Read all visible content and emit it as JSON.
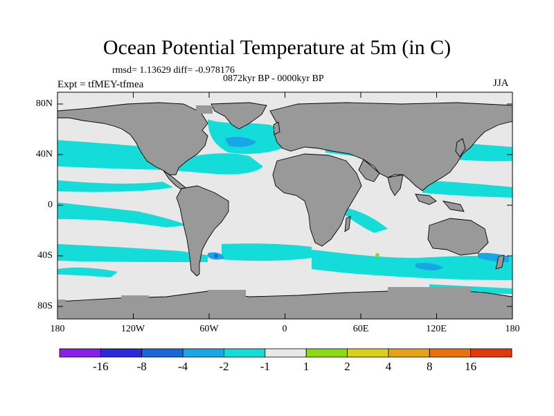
{
  "title": "Ocean Potential Temperature at 5m (in C)",
  "stats": "rmsd= 1.13629 diff= -0.978176",
  "period": "0872kyr BP - 0000kyr BP",
  "experiment": "Expt = tfMEY-tfmea",
  "season": "JJA",
  "lat_labels": [
    "80N",
    "40N",
    "0",
    "40S",
    "80S"
  ],
  "lon_labels": [
    "180",
    "120W",
    "60W",
    "0",
    "60E",
    "120E",
    "180"
  ],
  "colorbar": {
    "labels": [
      "-16",
      "-8",
      "-4",
      "-2",
      "-1",
      "1",
      "2",
      "4",
      "8",
      "16"
    ],
    "colors": [
      "#8a1ee8",
      "#2c2ad8",
      "#1768d8",
      "#19a6e6",
      "#14dcd8",
      "#e8e8e8",
      "#8ada18",
      "#d8d01a",
      "#e8a21a",
      "#e8700e",
      "#e03a0c"
    ]
  },
  "colors": {
    "land": "#999999",
    "ocean_neutral": "#e8e8e8",
    "cool_light": "#14dcd8",
    "cool_mid": "#19a6e6",
    "cool_dark": "#1768d8"
  }
}
